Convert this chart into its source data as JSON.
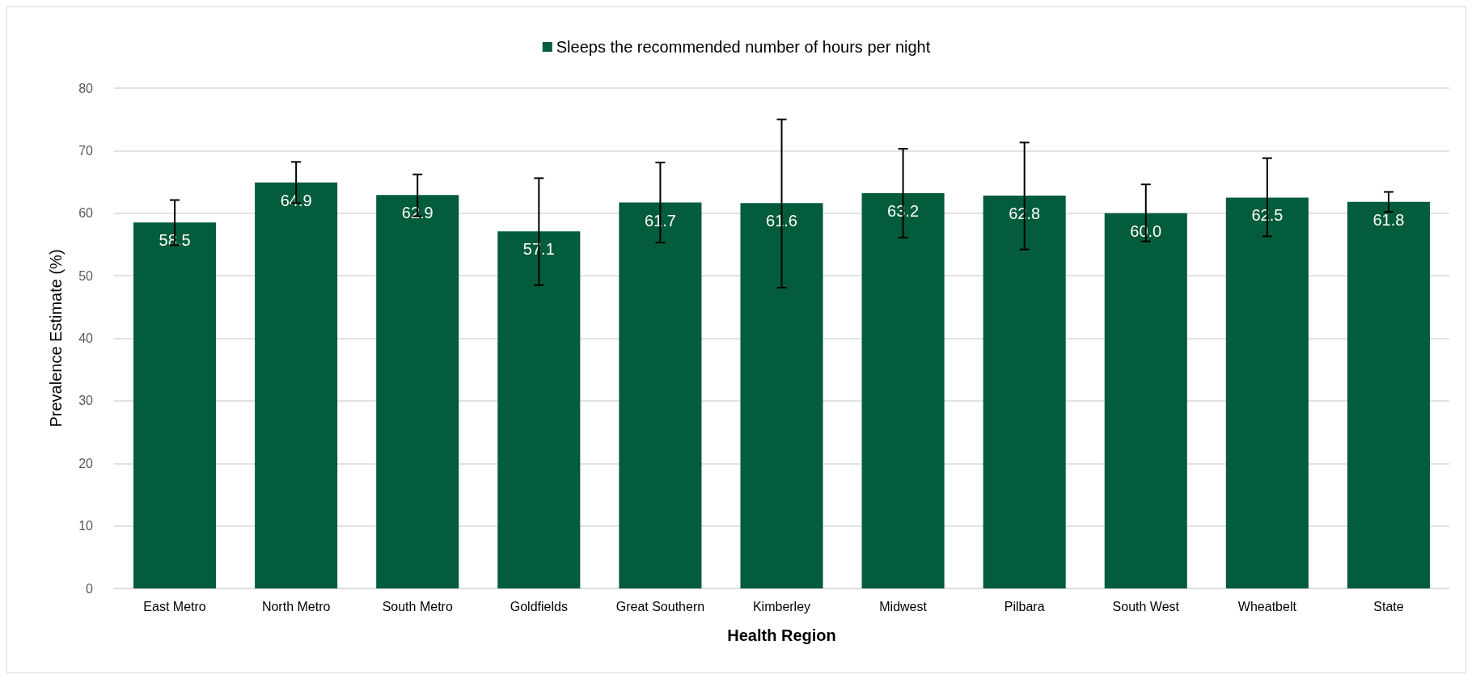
{
  "chart_data": {
    "type": "bar",
    "xlabel": "Health Region",
    "ylabel": "Prevalence Estimate (%)",
    "categories": [
      "East Metro",
      "North Metro",
      "South Metro",
      "Goldfields",
      "Great Southern",
      "Kimberley",
      "Midwest",
      "Pilbara",
      "South West",
      "Wheatbelt",
      "State"
    ],
    "series": [
      {
        "name": "Sleeps the recommended number of hours per night",
        "color": "#035c3b",
        "values": [
          58.5,
          64.9,
          62.9,
          57.1,
          61.7,
          61.6,
          63.2,
          62.8,
          60.0,
          62.5,
          61.8
        ],
        "value_labels": [
          "58.5",
          "64.9",
          "62.9",
          "57.1",
          "61.7",
          "61.6",
          "63.2",
          "62.8",
          "60.0",
          "62.5",
          "61.8"
        ],
        "errors": [
          [
            54.9,
            62.1
          ],
          [
            61.6,
            68.2
          ],
          [
            59.5,
            66.2
          ],
          [
            48.5,
            65.6
          ],
          [
            55.3,
            68.1
          ],
          [
            48.1,
            75.0
          ],
          [
            56.1,
            70.3
          ],
          [
            54.2,
            71.3
          ],
          [
            55.5,
            64.6
          ],
          [
            56.3,
            68.8
          ],
          [
            60.2,
            63.4
          ]
        ]
      }
    ],
    "ylim": [
      0,
      80
    ],
    "yticks": [
      0,
      10,
      20,
      30,
      40,
      50,
      60,
      70,
      80
    ],
    "grid": "y",
    "legend": "top"
  }
}
